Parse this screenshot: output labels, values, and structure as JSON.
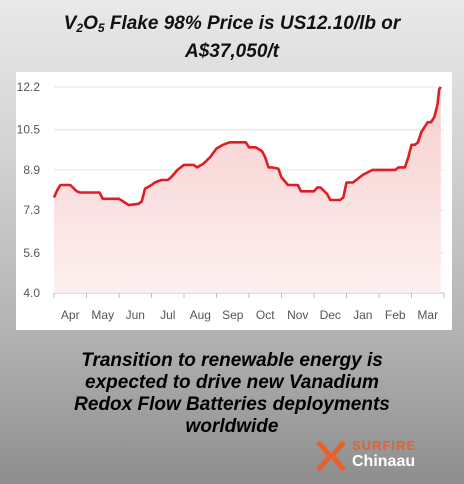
{
  "title": {
    "line1_prefix": "V",
    "sub1": "2",
    "mid": "O",
    "sub2": "5",
    "line1_suffix": " Flake 98% Price is US12.10/lb or",
    "line2": "A$37,050/t"
  },
  "chart_data": {
    "type": "line",
    "title": "",
    "xlabel": "",
    "ylabel": "",
    "yticks": [
      4.0,
      5.6,
      7.3,
      8.9,
      10.5,
      12.2
    ],
    "ytick_labels": [
      "4.0",
      "5.6",
      "7.3",
      "8.9",
      "10.5",
      "12.2"
    ],
    "ylim": [
      4.0,
      12.2
    ],
    "xlim": [
      0,
      12
    ],
    "month_labels": [
      "Apr",
      "May",
      "Jun",
      "Jul",
      "Aug",
      "Sep",
      "Oct",
      "Nov",
      "Dec",
      "Jan",
      "Feb",
      "Mar"
    ],
    "grid": "horizontal",
    "fill": true,
    "line_color": "#e31b23",
    "series": [
      {
        "x": [
          0.0,
          0.1,
          0.2,
          0.35,
          0.5,
          0.7,
          0.8,
          1.0,
          1.2,
          1.4,
          1.5,
          1.8,
          2.0,
          2.3,
          2.6,
          2.7,
          2.8,
          3.0,
          3.1,
          3.3,
          3.5,
          3.6,
          3.8,
          4.0,
          4.3,
          4.4,
          4.6,
          4.8,
          5.0,
          5.2,
          5.4,
          5.5,
          5.7,
          5.9,
          6.0,
          6.2,
          6.4,
          6.5,
          6.6,
          6.7,
          6.9,
          7.0,
          7.2,
          7.5,
          7.6,
          7.8,
          8.0,
          8.1,
          8.2,
          8.4,
          8.5,
          8.8,
          8.9,
          9.0,
          9.2,
          9.5,
          9.8,
          10.0,
          10.2,
          10.5,
          10.6,
          10.8,
          10.9,
          11.0,
          11.1,
          11.2,
          11.3,
          11.4,
          11.5,
          11.6,
          11.7,
          11.8,
          11.85,
          11.9
        ],
        "y": [
          7.8,
          8.1,
          8.3,
          8.3,
          8.3,
          8.05,
          8.0,
          8.0,
          8.0,
          8.0,
          7.75,
          7.75,
          7.75,
          7.5,
          7.55,
          7.65,
          8.15,
          8.3,
          8.4,
          8.5,
          8.5,
          8.6,
          8.9,
          9.1,
          9.1,
          9.0,
          9.15,
          9.4,
          9.75,
          9.9,
          10.0,
          10.0,
          10.0,
          10.0,
          9.8,
          9.8,
          9.65,
          9.4,
          9.0,
          9.0,
          8.95,
          8.6,
          8.3,
          8.3,
          8.05,
          8.05,
          8.05,
          8.2,
          8.2,
          7.95,
          7.7,
          7.7,
          7.8,
          8.4,
          8.4,
          8.7,
          8.9,
          8.9,
          8.9,
          8.9,
          9.0,
          9.0,
          9.4,
          9.9,
          9.9,
          10.0,
          10.4,
          10.6,
          10.8,
          10.8,
          11.0,
          11.5,
          12.1,
          12.2
        ]
      }
    ]
  },
  "caption": {
    "line1": "Transition to renewable energy is",
    "line2": "expected to drive new Vanadium",
    "line3": "Redox Flow Batteries  deployments",
    "line4": "worldwide"
  },
  "logo": {
    "line1": "SURFIRE",
    "line2": "Chinaau",
    "accent": "#e8602c"
  }
}
